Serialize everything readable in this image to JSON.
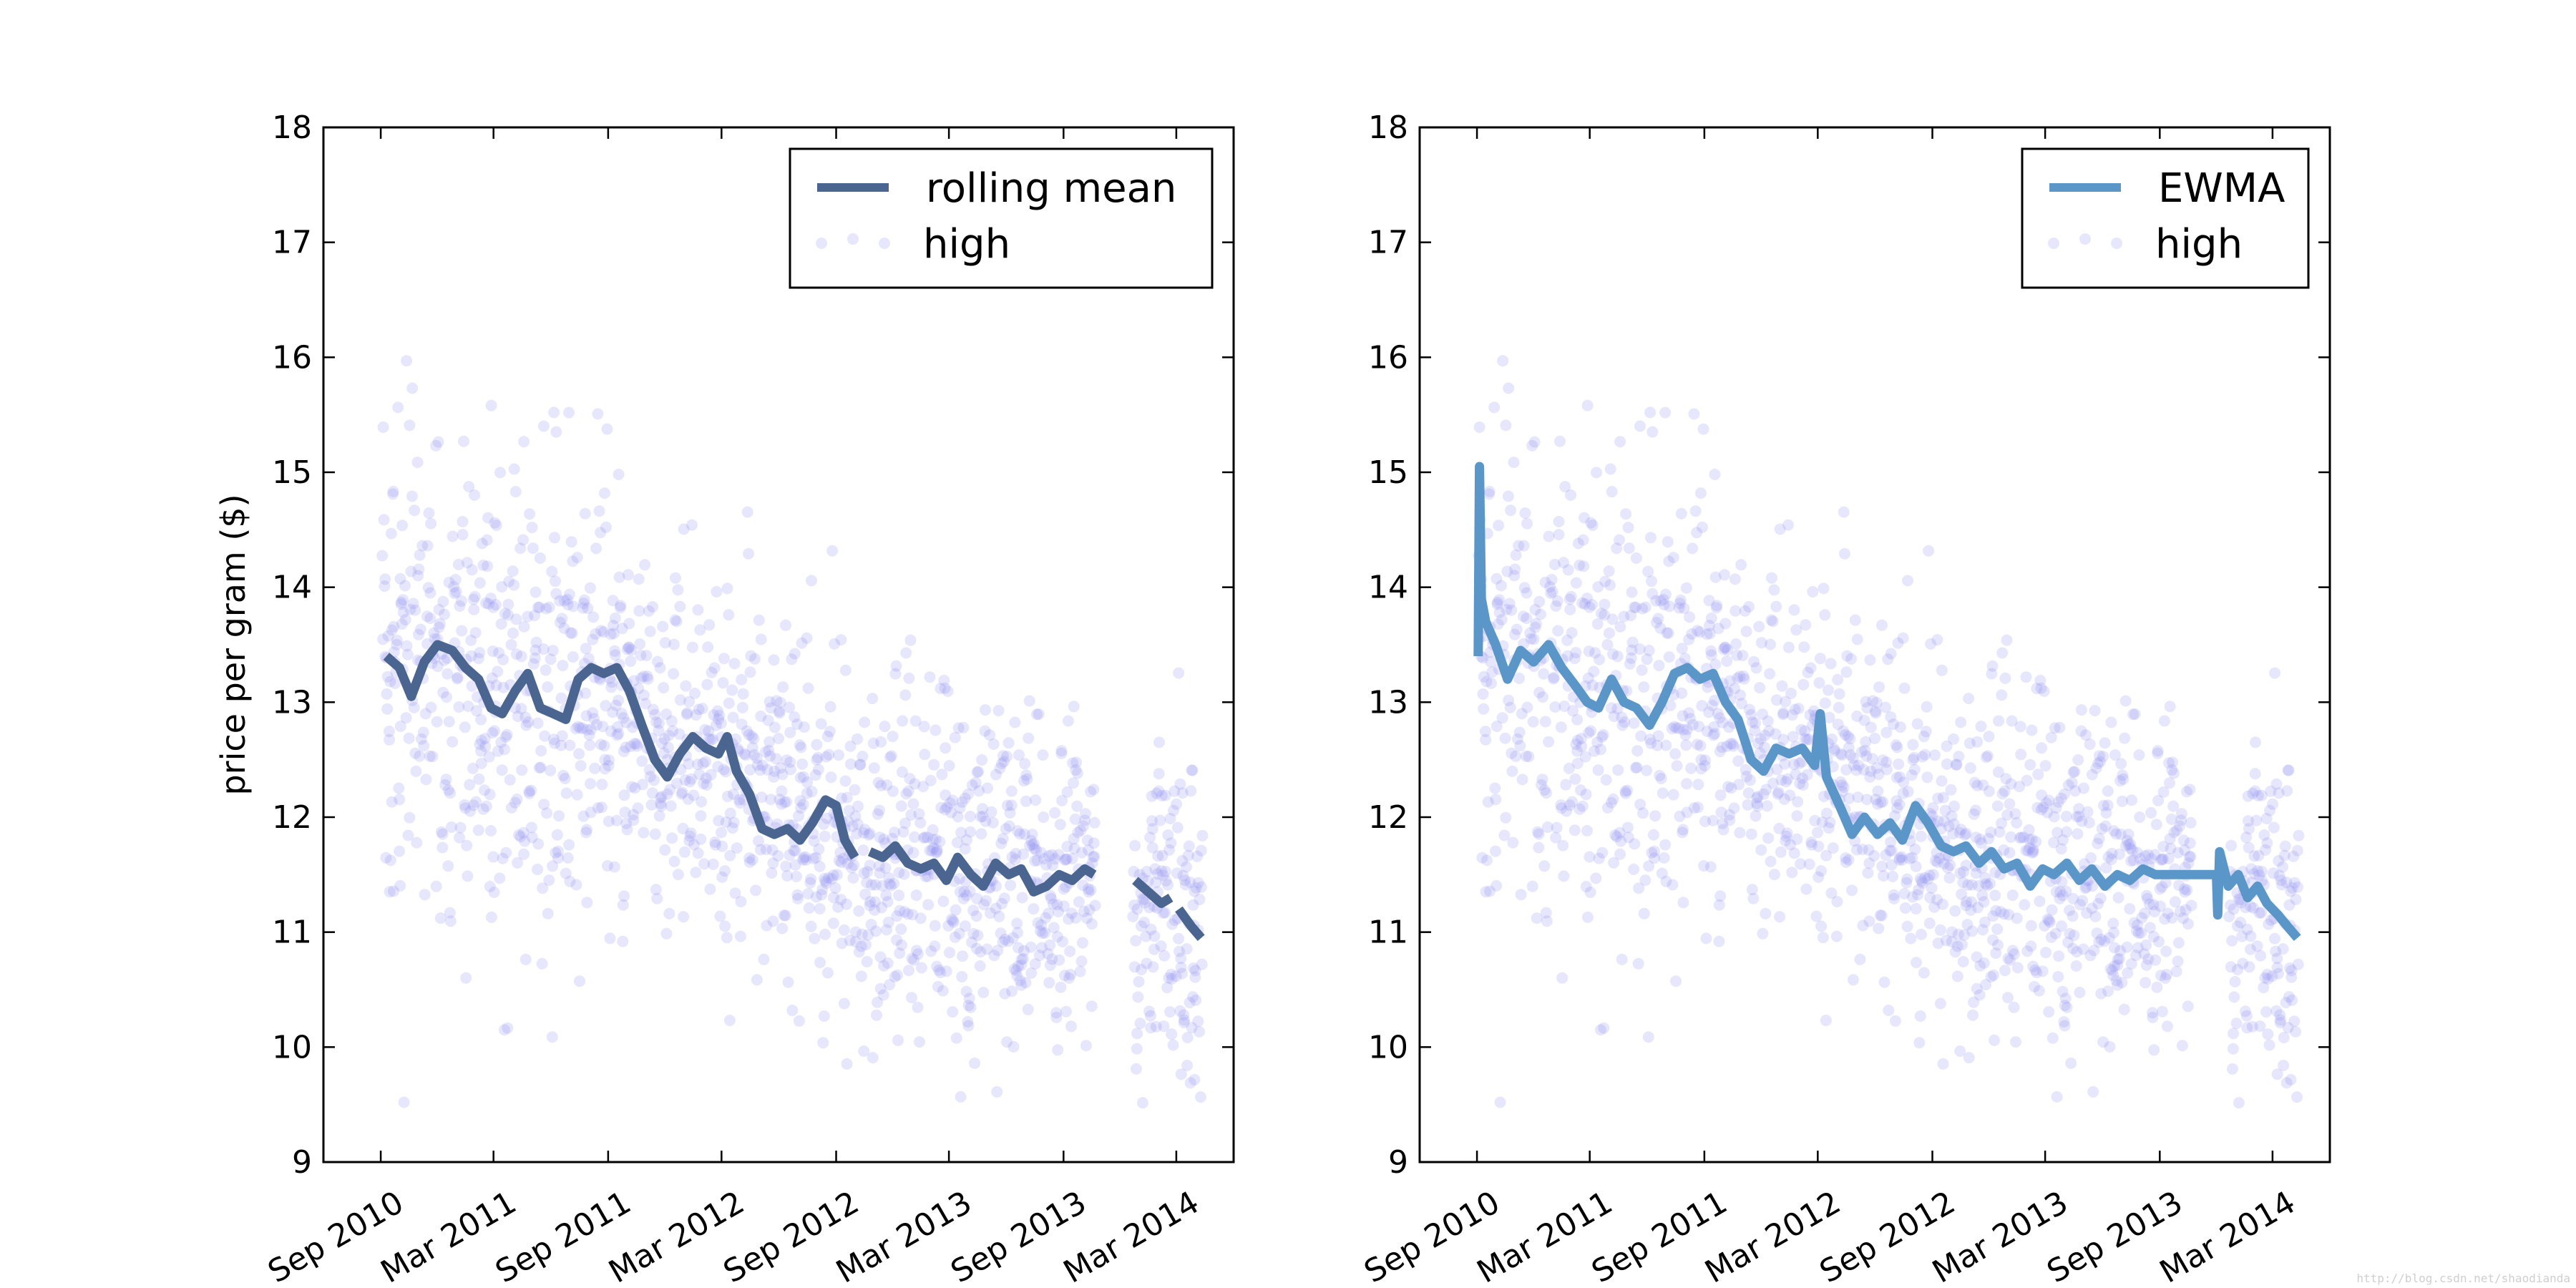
{
  "watermark": "http://blog.csdn.net/shaodianda",
  "chart_data": [
    {
      "type": "scatter+line",
      "ylabel": "price per gram ($)",
      "ylim": [
        9,
        18
      ],
      "yticks": [
        9,
        10,
        11,
        12,
        13,
        14,
        15,
        16,
        17,
        18
      ],
      "xlim": [
        "2010-06-01",
        "2014-06-01"
      ],
      "xticks": [
        {
          "date": "2010-09-01",
          "label": "Sep 2010"
        },
        {
          "date": "2011-03-01",
          "label": "Mar 2011"
        },
        {
          "date": "2011-09-01",
          "label": "Sep 2011"
        },
        {
          "date": "2012-03-01",
          "label": "Mar 2012"
        },
        {
          "date": "2012-09-01",
          "label": "Sep 2012"
        },
        {
          "date": "2013-03-01",
          "label": "Mar 2013"
        },
        {
          "date": "2013-09-01",
          "label": "Sep 2013"
        },
        {
          "date": "2014-03-01",
          "label": "Mar 2014"
        }
      ],
      "legend_placement": "top-right",
      "legend": [
        {
          "label": "rolling mean",
          "kind": "line"
        },
        {
          "label": "high",
          "kind": "points"
        }
      ],
      "line_color": "#4a6590",
      "scatter_color": "#8c8cf0",
      "line": {
        "name": "rolling mean",
        "segments": [
          [
            [
              "2010-09-10",
              13.4
            ],
            [
              "2010-10-01",
              13.3
            ],
            [
              "2010-10-20",
              13.05
            ],
            [
              "2010-11-10",
              13.35
            ],
            [
              "2010-12-01",
              13.5
            ],
            [
              "2010-12-25",
              13.45
            ],
            [
              "2011-01-15",
              13.3
            ],
            [
              "2011-02-05",
              13.2
            ],
            [
              "2011-02-25",
              12.95
            ],
            [
              "2011-03-15",
              12.9
            ],
            [
              "2011-04-05",
              13.1
            ],
            [
              "2011-04-25",
              13.25
            ],
            [
              "2011-05-15",
              12.95
            ],
            [
              "2011-06-05",
              12.9
            ],
            [
              "2011-06-25",
              12.85
            ],
            [
              "2011-07-15",
              13.2
            ],
            [
              "2011-08-05",
              13.3
            ],
            [
              "2011-08-25",
              13.25
            ],
            [
              "2011-09-15",
              13.3
            ],
            [
              "2011-10-05",
              13.1
            ],
            [
              "2011-10-25",
              12.8
            ],
            [
              "2011-11-15",
              12.5
            ],
            [
              "2011-12-05",
              12.35
            ],
            [
              "2011-12-25",
              12.55
            ],
            [
              "2012-01-15",
              12.7
            ],
            [
              "2012-02-05",
              12.6
            ],
            [
              "2012-02-25",
              12.55
            ],
            [
              "2012-03-10",
              12.7
            ],
            [
              "2012-03-25",
              12.4
            ],
            [
              "2012-04-15",
              12.2
            ],
            [
              "2012-05-05",
              11.9
            ],
            [
              "2012-05-25",
              11.85
            ],
            [
              "2012-06-15",
              11.9
            ],
            [
              "2012-07-05",
              11.8
            ],
            [
              "2012-07-25",
              11.95
            ],
            [
              "2012-08-15",
              12.15
            ],
            [
              "2012-09-01",
              12.1
            ],
            [
              "2012-09-15",
              11.8
            ],
            [
              "2012-10-01",
              11.65
            ]
          ],
          [
            [
              "2012-10-25",
              11.7
            ],
            [
              "2012-11-15",
              11.65
            ],
            [
              "2012-12-05",
              11.75
            ],
            [
              "2012-12-25",
              11.6
            ],
            [
              "2013-01-15",
              11.55
            ],
            [
              "2013-02-05",
              11.6
            ],
            [
              "2013-02-25",
              11.45
            ],
            [
              "2013-03-15",
              11.65
            ],
            [
              "2013-04-05",
              11.5
            ],
            [
              "2013-04-25",
              11.4
            ],
            [
              "2013-05-15",
              11.6
            ],
            [
              "2013-06-05",
              11.5
            ],
            [
              "2013-06-25",
              11.55
            ],
            [
              "2013-07-15",
              11.35
            ],
            [
              "2013-08-05",
              11.4
            ],
            [
              "2013-08-25",
              11.5
            ],
            [
              "2013-09-15",
              11.45
            ],
            [
              "2013-10-05",
              11.55
            ],
            [
              "2013-10-20",
              11.5
            ]
          ],
          [
            [
              "2013-12-25",
              11.45
            ],
            [
              "2014-01-15",
              11.35
            ],
            [
              "2014-02-05",
              11.25
            ],
            [
              "2014-02-20",
              11.3
            ]
          ],
          [
            [
              "2014-03-05",
              11.2
            ],
            [
              "2014-03-25",
              11.05
            ],
            [
              "2014-04-10",
              10.95
            ]
          ]
        ]
      }
    },
    {
      "type": "scatter+line",
      "ylabel": "",
      "ylim": [
        9,
        18
      ],
      "yticks": [
        9,
        10,
        11,
        12,
        13,
        14,
        15,
        16,
        17,
        18
      ],
      "xlim": [
        "2010-06-01",
        "2014-06-01"
      ],
      "xticks": [
        {
          "date": "2010-09-01",
          "label": "Sep 2010"
        },
        {
          "date": "2011-03-01",
          "label": "Mar 2011"
        },
        {
          "date": "2011-09-01",
          "label": "Sep 2011"
        },
        {
          "date": "2012-03-01",
          "label": "Mar 2012"
        },
        {
          "date": "2012-09-01",
          "label": "Sep 2012"
        },
        {
          "date": "2013-03-01",
          "label": "Mar 2013"
        },
        {
          "date": "2013-09-01",
          "label": "Sep 2013"
        },
        {
          "date": "2014-03-01",
          "label": "Mar 2014"
        }
      ],
      "legend_placement": "top-right",
      "legend": [
        {
          "label": "EWMA",
          "kind": "line"
        },
        {
          "label": "high",
          "kind": "points"
        }
      ],
      "line_color": "#5b96c8",
      "scatter_color": "#8c8cf0",
      "line": {
        "name": "EWMA",
        "segments": [
          [
            [
              "2010-09-03",
              13.4
            ],
            [
              "2010-09-05",
              15.05
            ],
            [
              "2010-09-08",
              13.9
            ],
            [
              "2010-09-15",
              13.7
            ],
            [
              "2010-10-01",
              13.5
            ],
            [
              "2010-10-20",
              13.2
            ],
            [
              "2010-11-10",
              13.45
            ],
            [
              "2010-12-01",
              13.35
            ],
            [
              "2010-12-25",
              13.5
            ],
            [
              "2011-01-15",
              13.3
            ],
            [
              "2011-02-05",
              13.15
            ],
            [
              "2011-02-25",
              13.0
            ],
            [
              "2011-03-15",
              12.95
            ],
            [
              "2011-04-05",
              13.2
            ],
            [
              "2011-04-25",
              13.0
            ],
            [
              "2011-05-15",
              12.95
            ],
            [
              "2011-06-05",
              12.8
            ],
            [
              "2011-06-25",
              13.0
            ],
            [
              "2011-07-15",
              13.25
            ],
            [
              "2011-08-05",
              13.3
            ],
            [
              "2011-08-25",
              13.2
            ],
            [
              "2011-09-15",
              13.25
            ],
            [
              "2011-10-05",
              13.0
            ],
            [
              "2011-10-25",
              12.85
            ],
            [
              "2011-11-15",
              12.5
            ],
            [
              "2011-12-05",
              12.4
            ],
            [
              "2011-12-25",
              12.6
            ],
            [
              "2012-01-15",
              12.55
            ],
            [
              "2012-02-05",
              12.6
            ],
            [
              "2012-02-25",
              12.45
            ],
            [
              "2012-03-05",
              12.9
            ],
            [
              "2012-03-15",
              12.35
            ],
            [
              "2012-04-05",
              12.1
            ],
            [
              "2012-04-25",
              11.85
            ],
            [
              "2012-05-15",
              12.0
            ],
            [
              "2012-06-05",
              11.85
            ],
            [
              "2012-06-25",
              11.95
            ],
            [
              "2012-07-15",
              11.8
            ],
            [
              "2012-08-05",
              12.1
            ],
            [
              "2012-08-25",
              11.95
            ],
            [
              "2012-09-15",
              11.75
            ],
            [
              "2012-10-05",
              11.7
            ],
            [
              "2012-10-25",
              11.75
            ],
            [
              "2012-11-15",
              11.6
            ],
            [
              "2012-12-05",
              11.7
            ],
            [
              "2012-12-25",
              11.55
            ],
            [
              "2013-01-15",
              11.6
            ],
            [
              "2013-02-05",
              11.4
            ],
            [
              "2013-02-25",
              11.55
            ],
            [
              "2013-03-15",
              11.5
            ],
            [
              "2013-04-05",
              11.6
            ],
            [
              "2013-04-25",
              11.45
            ],
            [
              "2013-05-15",
              11.55
            ],
            [
              "2013-06-05",
              11.4
            ],
            [
              "2013-06-25",
              11.5
            ],
            [
              "2013-07-15",
              11.45
            ],
            [
              "2013-08-05",
              11.55
            ],
            [
              "2013-08-25",
              11.5
            ],
            [
              "2013-12-01",
              11.5
            ],
            [
              "2013-12-03",
              11.15
            ],
            [
              "2013-12-06",
              11.7
            ],
            [
              "2013-12-20",
              11.4
            ],
            [
              "2014-01-05",
              11.5
            ],
            [
              "2014-01-20",
              11.3
            ],
            [
              "2014-02-05",
              11.4
            ],
            [
              "2014-02-20",
              11.25
            ],
            [
              "2014-03-10",
              11.15
            ],
            [
              "2014-03-25",
              11.05
            ],
            [
              "2014-04-10",
              10.95
            ]
          ]
        ]
      }
    }
  ]
}
